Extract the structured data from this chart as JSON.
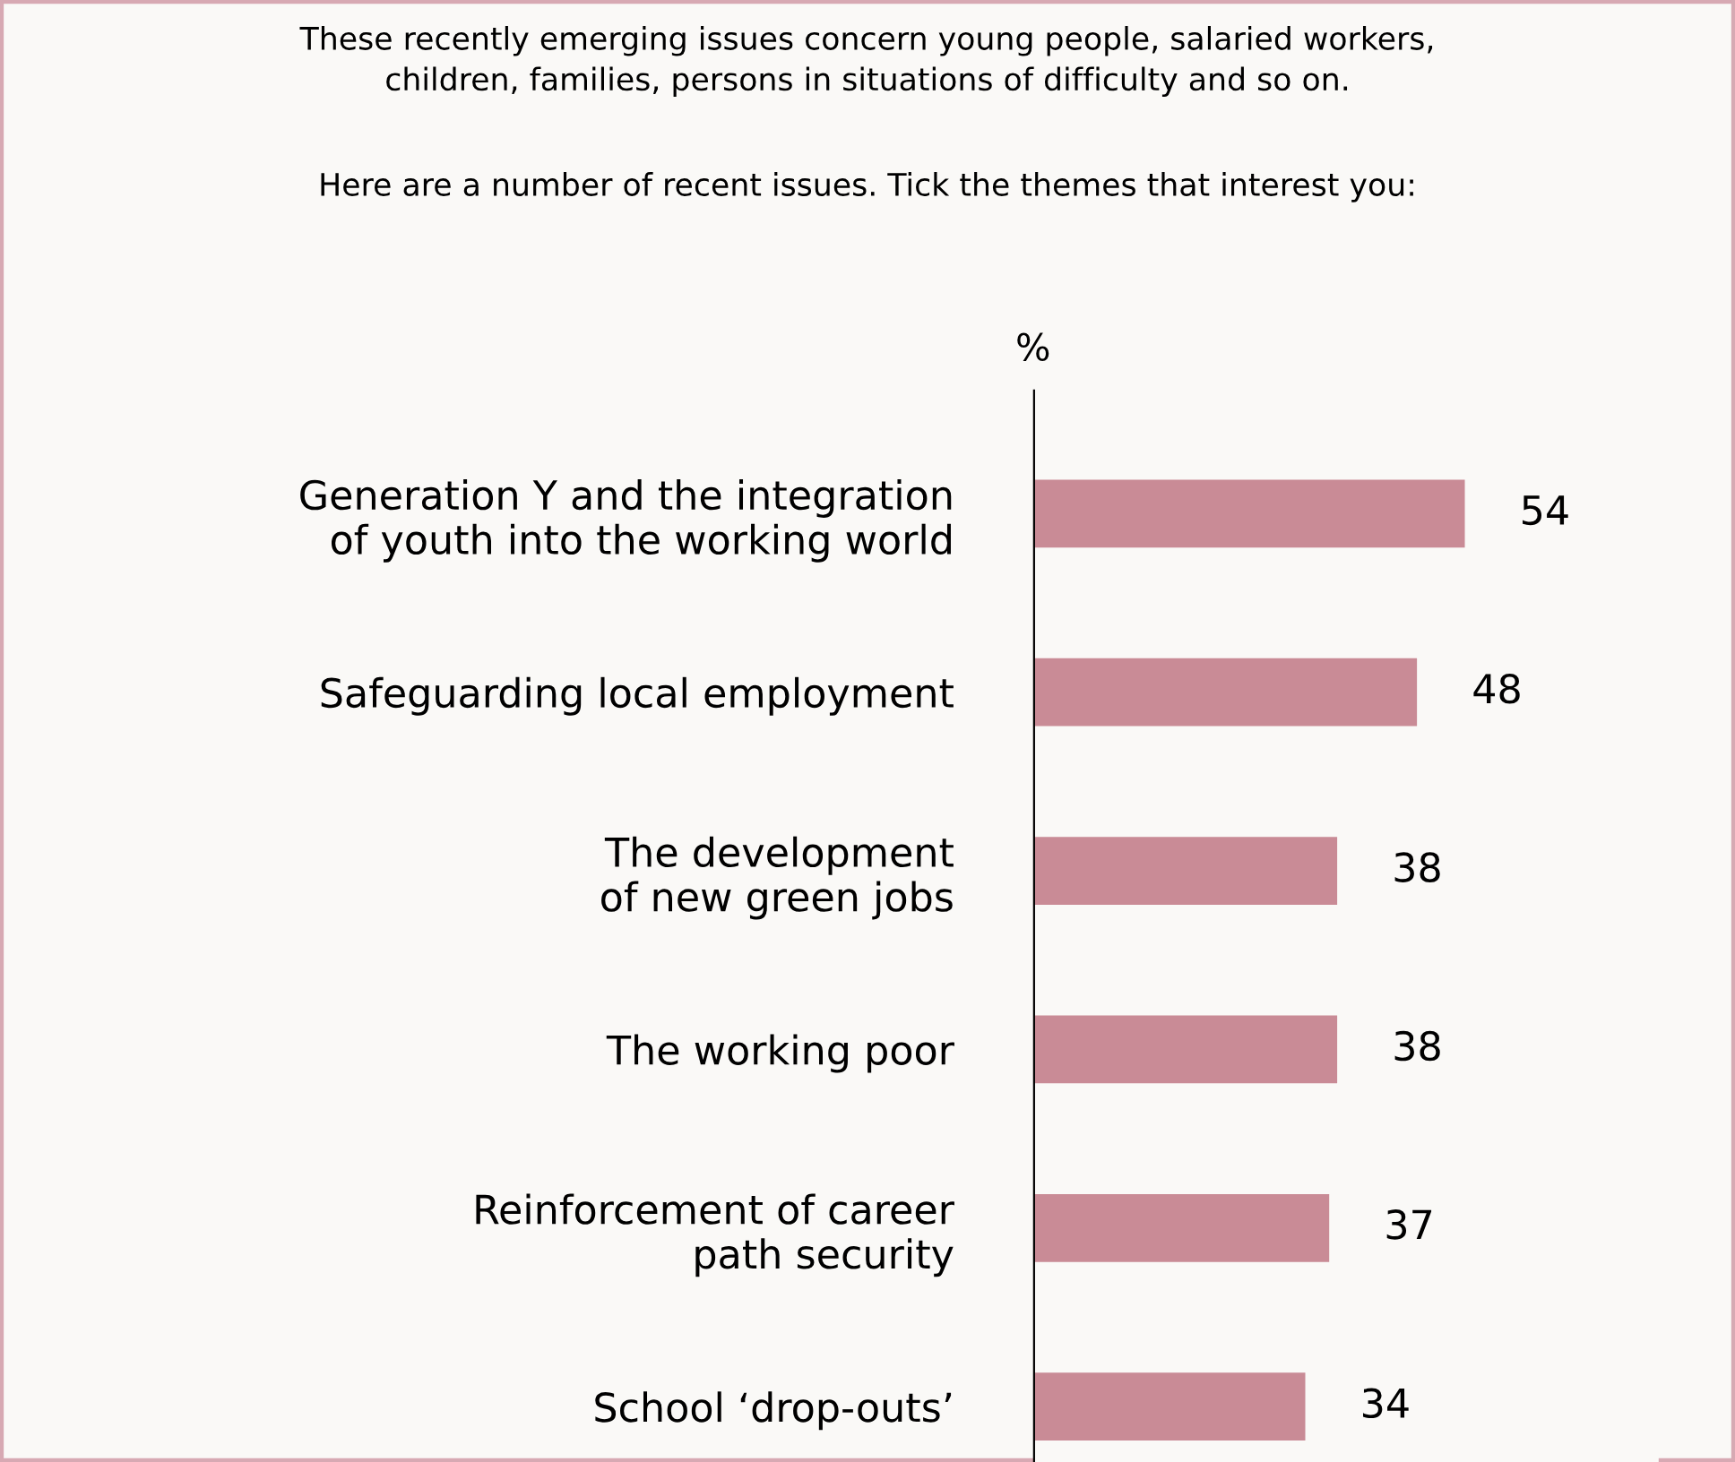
{
  "chart_data": {
    "type": "bar",
    "orientation": "horizontal",
    "title": "These recently emerging issues concern young people, salaried workers,\nchildren, families, persons in situations of difficulty and so on.",
    "subtitle": "Here are a number of recent issues. Tick the themes that interest you:",
    "xlabel": "%",
    "categories": [
      "Generation Y and the integration\nof youth into the working world",
      "Safeguarding local employment",
      "The development\nof new green jobs",
      "The working poor",
      "Reinforcement of career\npath security",
      "School ‘drop-outs’"
    ],
    "values": [
      54,
      48,
      38,
      38,
      37,
      34
    ],
    "color": "#c98b96",
    "data_labels": true,
    "grid": false,
    "legend": false
  }
}
